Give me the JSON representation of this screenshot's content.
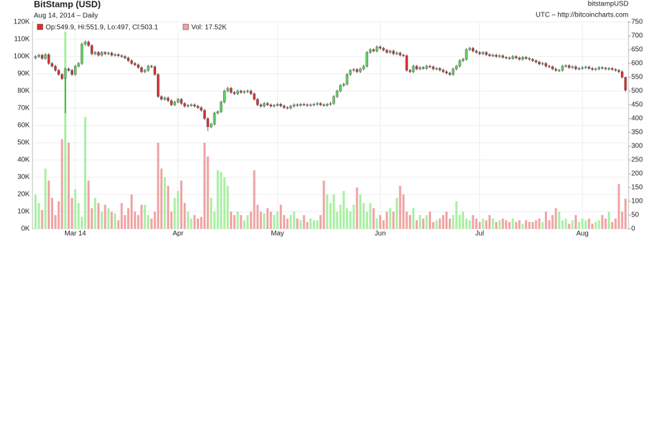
{
  "chart_data": {
    "type": "candlestick",
    "title": "BitStamp (USD)",
    "subtitle": "Aug 14, 2014 – Daily",
    "symbol": "bitstampUSD",
    "source": "UTC – http://bitcoincharts.com",
    "legend": [
      "Op:549.9, Hi:551.9, Lo:497, Cl:503.1",
      "Vol: 17.52K"
    ],
    "up_color": "#5cd65c",
    "down_color": "#d93030",
    "volume_up_color": "#a9f0a3",
    "volume_down_color": "#f0a3a3",
    "grid": true,
    "xlim": [
      -0.5,
      178.5
    ],
    "xticks": [
      {
        "value": 12,
        "label": "Mar 14"
      },
      {
        "value": 43,
        "label": "Apr"
      },
      {
        "value": 73,
        "label": "May"
      },
      {
        "value": 104,
        "label": "Jun"
      },
      {
        "value": 134,
        "label": "Jul"
      },
      {
        "value": 165,
        "label": "Aug"
      }
    ],
    "ylim": [
      0,
      120000
    ],
    "yticks": [
      {
        "value": 0,
        "label": "0K"
      },
      {
        "value": 10000,
        "label": "10K"
      },
      {
        "value": 20000,
        "label": "20K"
      },
      {
        "value": 30000,
        "label": "30K"
      },
      {
        "value": 40000,
        "label": "40K"
      },
      {
        "value": 50000,
        "label": "50K"
      },
      {
        "value": 60000,
        "label": "60K"
      },
      {
        "value": 70000,
        "label": "70K"
      },
      {
        "value": 80000,
        "label": "80K"
      },
      {
        "value": 90000,
        "label": "90K"
      },
      {
        "value": 100000,
        "label": "100K"
      },
      {
        "value": 110000,
        "label": "110K"
      },
      {
        "value": 120000,
        "label": "120K"
      }
    ],
    "y2lim": [
      0,
      750
    ],
    "y2ticks": [
      0,
      50,
      100,
      150,
      200,
      250,
      300,
      350,
      400,
      450,
      500,
      550,
      600,
      650,
      700,
      750
    ],
    "open": [
      620,
      625,
      630,
      618,
      632,
      600,
      590,
      575,
      560,
      545,
      580,
      575,
      560,
      590,
      600,
      670,
      678,
      665,
      635,
      640,
      630,
      640,
      635,
      638,
      630,
      632,
      628,
      625,
      620,
      610,
      600,
      595,
      585,
      570,
      575,
      590,
      588,
      560,
      480,
      470,
      475,
      465,
      450,
      460,
      470,
      455,
      445,
      448,
      450,
      445,
      440,
      430,
      400,
      370,
      380,
      420,
      425,
      460,
      500,
      510,
      495,
      490,
      500,
      495,
      498,
      500,
      490,
      470,
      450,
      445,
      455,
      450,
      445,
      448,
      452,
      446,
      440,
      438,
      445,
      450,
      448,
      452,
      450,
      448,
      450,
      452,
      455,
      450,
      448,
      452,
      455,
      480,
      500,
      520,
      525,
      560,
      575,
      578,
      570,
      580,
      590,
      640,
      650,
      645,
      660,
      655,
      648,
      640,
      645,
      635,
      638,
      630,
      628,
      575,
      570,
      590,
      580,
      585,
      582,
      590,
      588,
      580,
      582,
      576,
      570,
      565,
      560,
      580,
      590,
      610,
      615,
      650,
      655,
      645,
      640,
      635,
      640,
      632,
      628,
      630,
      625,
      628,
      622,
      620,
      618,
      625,
      620,
      615,
      622,
      618,
      615,
      610,
      605,
      598,
      600,
      590,
      588,
      580,
      575,
      575,
      590,
      592,
      585,
      588,
      580,
      582,
      585,
      587,
      582,
      578,
      580,
      585,
      583,
      580,
      582,
      578,
      575,
      570,
      549.9
    ],
    "high": [
      630,
      635,
      635,
      637,
      637,
      605,
      595,
      580,
      565,
      585,
      585,
      580,
      595,
      605,
      675,
      683,
      683,
      670,
      645,
      645,
      645,
      645,
      643,
      643,
      637,
      637,
      633,
      630,
      625,
      615,
      605,
      600,
      590,
      580,
      595,
      595,
      593,
      565,
      485,
      480,
      480,
      470,
      465,
      475,
      475,
      460,
      453,
      455,
      455,
      450,
      445,
      435,
      405,
      385,
      425,
      430,
      465,
      505,
      515,
      515,
      500,
      505,
      505,
      503,
      505,
      505,
      495,
      475,
      455,
      460,
      460,
      455,
      453,
      457,
      457,
      451,
      445,
      450,
      455,
      455,
      457,
      457,
      455,
      455,
      457,
      460,
      460,
      455,
      457,
      460,
      485,
      505,
      525,
      530,
      565,
      580,
      583,
      583,
      585,
      595,
      645,
      655,
      655,
      665,
      665,
      660,
      653,
      650,
      650,
      643,
      643,
      635,
      633,
      580,
      595,
      595,
      590,
      590,
      595,
      595,
      593,
      587,
      587,
      581,
      575,
      570,
      585,
      595,
      615,
      620,
      655,
      660,
      660,
      650,
      645,
      645,
      645,
      637,
      635,
      635,
      633,
      633,
      627,
      625,
      630,
      630,
      625,
      627,
      627,
      623,
      620,
      615,
      610,
      605,
      605,
      595,
      593,
      585,
      580,
      595,
      597,
      597,
      593,
      593,
      587,
      590,
      592,
      592,
      587,
      585,
      590,
      590,
      588,
      587,
      587,
      583,
      580,
      575,
      551.9
    ],
    "low": [
      615,
      620,
      613,
      613,
      595,
      585,
      570,
      555,
      540,
      420,
      570,
      555,
      555,
      585,
      595,
      665,
      660,
      630,
      630,
      625,
      625,
      630,
      630,
      625,
      625,
      623,
      620,
      615,
      605,
      595,
      590,
      580,
      565,
      565,
      570,
      583,
      555,
      475,
      465,
      465,
      460,
      445,
      445,
      455,
      450,
      440,
      440,
      443,
      440,
      435,
      425,
      395,
      355,
      365,
      375,
      415,
      420,
      455,
      495,
      490,
      485,
      485,
      490,
      490,
      493,
      485,
      465,
      445,
      440,
      440,
      445,
      440,
      440,
      443,
      441,
      435,
      433,
      433,
      440,
      443,
      443,
      445,
      443,
      443,
      445,
      447,
      445,
      443,
      443,
      447,
      450,
      475,
      495,
      515,
      520,
      555,
      570,
      565,
      565,
      575,
      585,
      635,
      640,
      640,
      650,
      643,
      635,
      635,
      630,
      630,
      625,
      623,
      570,
      565,
      565,
      575,
      575,
      577,
      577,
      583,
      575,
      575,
      571,
      565,
      560,
      555,
      555,
      575,
      585,
      605,
      610,
      645,
      640,
      635,
      630,
      630,
      627,
      623,
      623,
      620,
      620,
      617,
      615,
      613,
      613,
      615,
      610,
      610,
      613,
      610,
      605,
      600,
      593,
      593,
      585,
      583,
      575,
      570,
      570,
      570,
      585,
      580,
      580,
      575,
      575,
      577,
      580,
      577,
      573,
      573,
      575,
      578,
      575,
      575,
      573,
      570,
      565,
      544.9,
      497
    ],
    "close": [
      625,
      630,
      618,
      632,
      600,
      590,
      575,
      560,
      545,
      580,
      575,
      560,
      590,
      600,
      670,
      678,
      665,
      635,
      640,
      630,
      640,
      635,
      638,
      630,
      632,
      628,
      625,
      620,
      610,
      600,
      595,
      585,
      570,
      575,
      590,
      588,
      560,
      480,
      470,
      475,
      465,
      450,
      460,
      470,
      455,
      445,
      448,
      450,
      445,
      440,
      430,
      400,
      370,
      380,
      420,
      425,
      460,
      500,
      510,
      495,
      490,
      500,
      495,
      498,
      500,
      490,
      470,
      450,
      445,
      455,
      450,
      445,
      448,
      452,
      446,
      440,
      438,
      445,
      450,
      448,
      452,
      450,
      448,
      450,
      452,
      455,
      450,
      448,
      452,
      455,
      480,
      500,
      520,
      525,
      560,
      575,
      578,
      570,
      580,
      590,
      640,
      650,
      645,
      660,
      655,
      648,
      640,
      645,
      635,
      638,
      630,
      628,
      575,
      570,
      590,
      580,
      585,
      582,
      590,
      588,
      580,
      582,
      576,
      570,
      565,
      560,
      580,
      590,
      610,
      615,
      650,
      655,
      645,
      640,
      635,
      640,
      632,
      628,
      630,
      625,
      628,
      622,
      620,
      618,
      625,
      620,
      615,
      622,
      618,
      615,
      610,
      605,
      598,
      600,
      590,
      588,
      580,
      575,
      575,
      590,
      592,
      585,
      588,
      580,
      582,
      585,
      587,
      582,
      578,
      580,
      585,
      583,
      580,
      582,
      578,
      575,
      570,
      549.9,
      503.1
    ],
    "volume": [
      20000,
      15000,
      11000,
      35000,
      28000,
      18000,
      8000,
      16000,
      52000,
      119000,
      50000,
      18000,
      23000,
      15000,
      7000,
      65000,
      28000,
      12000,
      18000,
      15000,
      10000,
      14000,
      12000,
      10000,
      9000,
      5000,
      15000,
      8000,
      12000,
      20000,
      10000,
      8000,
      14000,
      14000,
      8000,
      6000,
      10000,
      50000,
      35000,
      30000,
      25000,
      10000,
      18000,
      22000,
      28000,
      15000,
      10000,
      6000,
      8000,
      6000,
      7000,
      50000,
      42000,
      18000,
      10000,
      34000,
      33000,
      30000,
      25000,
      10000,
      8000,
      10000,
      8000,
      5000,
      8000,
      10000,
      34000,
      14000,
      10000,
      9000,
      12000,
      10000,
      8000,
      10000,
      14000,
      8000,
      6000,
      8000,
      10000,
      6000,
      5000,
      8000,
      4000,
      6000,
      5000,
      5000,
      8000,
      28000,
      20000,
      15000,
      20000,
      10000,
      14000,
      22000,
      12000,
      10000,
      14000,
      24000,
      20000,
      15000,
      10000,
      15000,
      12000,
      6000,
      8000,
      5000,
      10000,
      12000,
      10000,
      18000,
      25000,
      20000,
      10000,
      8000,
      12000,
      5000,
      8000,
      6000,
      8000,
      10000,
      4000,
      5000,
      6000,
      8000,
      10000,
      6000,
      8000,
      16000,
      8000,
      10000,
      6000,
      5000,
      8000,
      6000,
      4000,
      6000,
      5000,
      8000,
      6000,
      4000,
      5000,
      6000,
      5000,
      4000,
      6000,
      4000,
      5000,
      3000,
      5000,
      4000,
      4000,
      5000,
      6000,
      4000,
      10000,
      5000,
      8000,
      12000,
      10000,
      5000,
      6000,
      3000,
      5000,
      8000,
      4000,
      6000,
      5000,
      6000,
      3000,
      4000,
      5000,
      8000,
      6000,
      10000,
      4000,
      6000,
      26000,
      10000,
      17520
    ]
  }
}
